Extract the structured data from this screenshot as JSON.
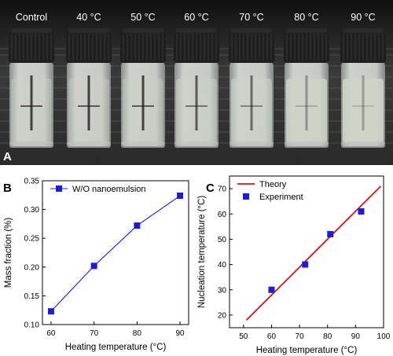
{
  "panel_a": {
    "label": "A",
    "vial_labels": [
      "Control",
      "40 °C",
      "50 °C",
      "60 °C",
      "70 °C",
      "80 °C",
      "90 °C"
    ],
    "cloudiness": [
      0.05,
      0.06,
      0.08,
      0.3,
      0.45,
      0.8,
      0.9
    ],
    "colors": {
      "background": "#1c1c1c",
      "cap": "#1e1e1e",
      "sample": "#cfd4c6",
      "label": "#ffffff"
    }
  },
  "chart_data": [
    {
      "panel_label": "B",
      "type": "line",
      "xlabel": "Heating temperature (°C)",
      "ylabel": "Mass fraction (%)",
      "xlim": [
        58,
        92
      ],
      "ylim": [
        0.1,
        0.35
      ],
      "xticks": [
        60,
        70,
        80,
        90
      ],
      "yticks": [
        0.1,
        0.15,
        0.2,
        0.25,
        0.3,
        0.35
      ],
      "ytick_labels": [
        "0.10",
        "0.15",
        "0.20",
        "0.25",
        "0.30",
        "0.35"
      ],
      "grid": false,
      "legend_position": "top-left",
      "series": [
        {
          "name": "W/O nanoemulsion",
          "x": [
            60,
            70,
            80,
            90
          ],
          "values": [
            0.123,
            0.202,
            0.272,
            0.324
          ],
          "color": "#1c1cd6",
          "marker": "square"
        }
      ]
    },
    {
      "panel_label": "C",
      "type": "scatter",
      "xlabel": "Heating temperature (°C)",
      "ylabel": "Nucleation temperature (°C)",
      "xlim": [
        45,
        100
      ],
      "ylim": [
        15,
        75
      ],
      "xticks": [
        50,
        60,
        70,
        80,
        90,
        100
      ],
      "yticks": [
        20,
        30,
        40,
        50,
        60,
        70
      ],
      "grid": false,
      "legend_position": "top-left",
      "series": [
        {
          "name": "Theory",
          "style": "line",
          "x": [
            51,
            99
          ],
          "values": [
            18,
            71
          ],
          "color": "#d41414"
        },
        {
          "name": "Experiment",
          "style": "points",
          "x": [
            60,
            72,
            81,
            92
          ],
          "values": [
            30,
            40,
            52,
            61
          ],
          "color": "#1c1cd6",
          "marker": "square"
        }
      ]
    }
  ]
}
